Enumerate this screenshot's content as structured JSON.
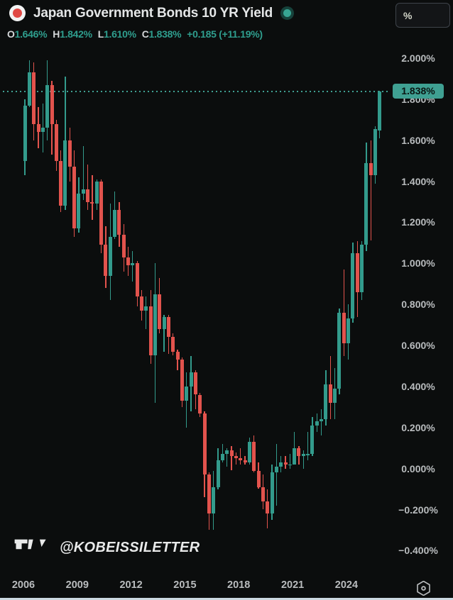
{
  "header": {
    "title": "Japan Government Bonds 10 YR Yield",
    "symbol_icon": "japan-flag",
    "status_dot": "realtime",
    "unit_button_label": "%",
    "ohlc": {
      "o_label": "O",
      "o_value": "1.646%",
      "h_label": "H",
      "h_value": "1.842%",
      "l_label": "L",
      "l_value": "1.610%",
      "c_label": "C",
      "c_value": "1.838%",
      "change": "+0.185 (+11.19%)"
    }
  },
  "watermark": {
    "handle": "@KOBEISSILETTER",
    "logo": "tradingview-logo"
  },
  "price_axis": {
    "labels": [
      "2.000%",
      "1.800%",
      "1.600%",
      "1.400%",
      "1.200%",
      "1.000%",
      "0.800%",
      "0.600%",
      "0.400%",
      "0.200%",
      "0.000%",
      "-0.200%",
      "-0.400%"
    ],
    "last_price_badge": "1.838%"
  },
  "time_axis": {
    "labels": [
      "2006",
      "2009",
      "2012",
      "2015",
      "2018",
      "2021",
      "2024"
    ]
  },
  "colors": {
    "background": "#0b0d0d",
    "up": "#339b8c",
    "down": "#e2534d",
    "accent_teal": "#2f9e8e",
    "axis_text": "#b9bcbe",
    "badge_bg": "#3fa092",
    "badge_text": "#0a1613",
    "flag_red": "#e04a45",
    "watermark_text": "#e9eaea"
  },
  "chart_data": {
    "type": "candlestick",
    "title": "Japan Government Bonds 10 YR Yield",
    "timeframe": "3M",
    "unit": "%",
    "grid": false,
    "legend_position": "top-left",
    "ylim": [
      -0.51,
      2.07
    ],
    "last_price": 1.838,
    "dotted_line_price": 1.838,
    "x": [
      "2006 Q1",
      "2006 Q2",
      "2006 Q3",
      "2006 Q4",
      "2007 Q1",
      "2007 Q2",
      "2007 Q3",
      "2007 Q4",
      "2008 Q1",
      "2008 Q2",
      "2008 Q3",
      "2008 Q4",
      "2009 Q1",
      "2009 Q2",
      "2009 Q3",
      "2009 Q4",
      "2010 Q1",
      "2010 Q2",
      "2010 Q3",
      "2010 Q4",
      "2011 Q1",
      "2011 Q2",
      "2011 Q3",
      "2011 Q4",
      "2012 Q1",
      "2012 Q2",
      "2012 Q3",
      "2012 Q4",
      "2013 Q1",
      "2013 Q2",
      "2013 Q3",
      "2013 Q4",
      "2014 Q1",
      "2014 Q2",
      "2014 Q3",
      "2014 Q4",
      "2015 Q1",
      "2015 Q2",
      "2015 Q3",
      "2015 Q4",
      "2016 Q1",
      "2016 Q2",
      "2016 Q3",
      "2016 Q4",
      "2017 Q1",
      "2017 Q2",
      "2017 Q3",
      "2017 Q4",
      "2018 Q1",
      "2018 Q2",
      "2018 Q3",
      "2018 Q4",
      "2019 Q1",
      "2019 Q2",
      "2019 Q3",
      "2019 Q4",
      "2020 Q1",
      "2020 Q2",
      "2020 Q3",
      "2020 Q4",
      "2021 Q1",
      "2021 Q2",
      "2021 Q3",
      "2021 Q4",
      "2022 Q1",
      "2022 Q2",
      "2022 Q3",
      "2022 Q4",
      "2023 Q1",
      "2023 Q2",
      "2023 Q3",
      "2023 Q4",
      "2024 Q1",
      "2024 Q2",
      "2024 Q3",
      "2024 Q4",
      "2025 Q1",
      "2025 Q2",
      "2025 Q3",
      "2025 Q4"
    ],
    "ohlc": [
      [
        1.5,
        1.8,
        1.43,
        1.77
      ],
      [
        1.77,
        1.99,
        1.76,
        1.93
      ],
      [
        1.93,
        1.98,
        1.6,
        1.68
      ],
      [
        1.68,
        1.76,
        1.56,
        1.64
      ],
      [
        1.64,
        1.78,
        1.54,
        1.66
      ],
      [
        1.66,
        1.99,
        1.6,
        1.87
      ],
      [
        1.87,
        1.89,
        1.53,
        1.68
      ],
      [
        1.68,
        1.7,
        1.45,
        1.5
      ],
      [
        1.5,
        1.55,
        1.25,
        1.28
      ],
      [
        1.28,
        1.91,
        1.26,
        1.6
      ],
      [
        1.6,
        1.66,
        1.4,
        1.47
      ],
      [
        1.47,
        1.55,
        1.13,
        1.17
      ],
      [
        1.17,
        1.42,
        1.15,
        1.34
      ],
      [
        1.34,
        1.57,
        1.31,
        1.36
      ],
      [
        1.36,
        1.48,
        1.26,
        1.3
      ],
      [
        1.3,
        1.43,
        1.21,
        1.29
      ],
      [
        1.29,
        1.41,
        1.26,
        1.4
      ],
      [
        1.4,
        1.41,
        1.05,
        1.09
      ],
      [
        1.09,
        1.18,
        0.88,
        0.94
      ],
      [
        0.94,
        1.29,
        0.82,
        1.13
      ],
      [
        1.13,
        1.35,
        1.12,
        1.26
      ],
      [
        1.26,
        1.3,
        1.08,
        1.14
      ],
      [
        1.14,
        1.19,
        0.96,
        1.03
      ],
      [
        1.03,
        1.08,
        0.94,
        0.99
      ],
      [
        0.99,
        1.06,
        0.91,
        1.0
      ],
      [
        1.0,
        1.01,
        0.79,
        0.84
      ],
      [
        0.84,
        0.87,
        0.72,
        0.77
      ],
      [
        0.77,
        0.84,
        0.68,
        0.79
      ],
      [
        0.79,
        0.87,
        0.51,
        0.55
      ],
      [
        0.55,
        1.0,
        0.32,
        0.85
      ],
      [
        0.85,
        0.93,
        0.66,
        0.68
      ],
      [
        0.68,
        0.75,
        0.57,
        0.74
      ],
      [
        0.74,
        0.75,
        0.56,
        0.64
      ],
      [
        0.64,
        0.66,
        0.55,
        0.57
      ],
      [
        0.57,
        0.58,
        0.48,
        0.53
      ],
      [
        0.53,
        0.54,
        0.3,
        0.33
      ],
      [
        0.33,
        0.47,
        0.2,
        0.4
      ],
      [
        0.4,
        0.55,
        0.28,
        0.47
      ],
      [
        0.47,
        0.48,
        0.29,
        0.36
      ],
      [
        0.36,
        0.37,
        0.25,
        0.27
      ],
      [
        0.27,
        0.28,
        -0.14,
        -0.03
      ],
      [
        -0.03,
        -0.02,
        -0.3,
        -0.22
      ],
      [
        -0.22,
        -0.01,
        -0.3,
        -0.09
      ],
      [
        -0.09,
        0.1,
        -0.1,
        0.04
      ],
      [
        0.04,
        0.12,
        0.03,
        0.07
      ],
      [
        0.07,
        0.1,
        0.01,
        0.09
      ],
      [
        0.09,
        0.11,
        -0.01,
        0.06
      ],
      [
        0.06,
        0.08,
        0.02,
        0.05
      ],
      [
        0.05,
        0.1,
        0.02,
        0.04
      ],
      [
        0.04,
        0.06,
        0.02,
        0.03
      ],
      [
        0.03,
        0.15,
        0.02,
        0.13
      ],
      [
        0.13,
        0.16,
        -0.02,
        -0.01
      ],
      [
        -0.01,
        0.03,
        -0.1,
        -0.09
      ],
      [
        -0.09,
        -0.03,
        -0.2,
        -0.16
      ],
      [
        -0.16,
        -0.1,
        -0.29,
        -0.22
      ],
      [
        -0.22,
        0.02,
        -0.25,
        -0.02
      ],
      [
        -0.02,
        0.12,
        -0.18,
        0.01
      ],
      [
        0.01,
        0.06,
        -0.02,
        0.03
      ],
      [
        0.03,
        0.06,
        0.0,
        0.02
      ],
      [
        0.02,
        0.07,
        0.0,
        0.02
      ],
      [
        0.02,
        0.18,
        0.02,
        0.1
      ],
      [
        0.1,
        0.11,
        0.02,
        0.06
      ],
      [
        0.06,
        0.09,
        0.0,
        0.07
      ],
      [
        0.07,
        0.18,
        0.04,
        0.07
      ],
      [
        0.07,
        0.25,
        0.06,
        0.21
      ],
      [
        0.21,
        0.27,
        0.18,
        0.23
      ],
      [
        0.23,
        0.29,
        0.16,
        0.24
      ],
      [
        0.24,
        0.48,
        0.21,
        0.41
      ],
      [
        0.41,
        0.55,
        0.24,
        0.32
      ],
      [
        0.32,
        0.49,
        0.24,
        0.39
      ],
      [
        0.39,
        0.78,
        0.36,
        0.76
      ],
      [
        0.76,
        0.97,
        0.55,
        0.61
      ],
      [
        0.61,
        0.8,
        0.53,
        0.73
      ],
      [
        0.73,
        1.1,
        0.71,
        1.05
      ],
      [
        1.05,
        1.11,
        0.74,
        0.86
      ],
      [
        0.86,
        1.11,
        0.82,
        1.09
      ],
      [
        1.09,
        1.59,
        1.06,
        1.49
      ],
      [
        1.49,
        1.6,
        1.11,
        1.43
      ],
      [
        1.43,
        1.67,
        1.39,
        1.653
      ],
      [
        1.646,
        1.842,
        1.61,
        1.838
      ]
    ]
  }
}
